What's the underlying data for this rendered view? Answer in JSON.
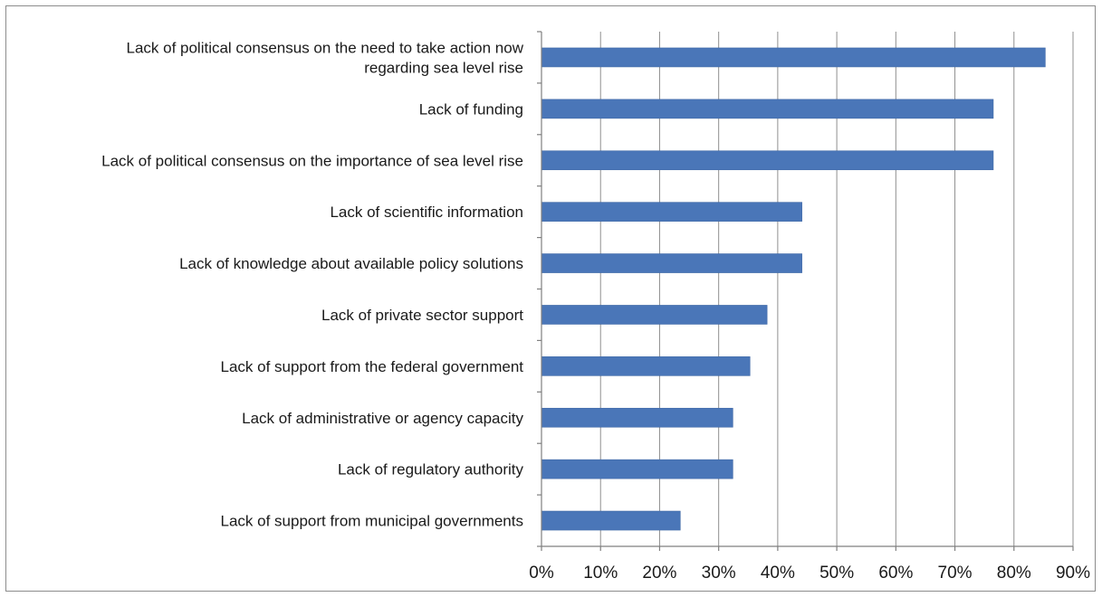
{
  "chart_data": {
    "type": "bar",
    "orientation": "horizontal",
    "title": "",
    "xlabel": "",
    "ylabel": "",
    "xlim": [
      0,
      90
    ],
    "x_ticks": [
      "0%",
      "10%",
      "20%",
      "30%",
      "40%",
      "50%",
      "60%",
      "70%",
      "80%",
      "90%"
    ],
    "grid": true,
    "legend": "none",
    "bar_color": "#4a76b8",
    "categories": [
      [
        "Lack of political consensus on the need to take action now",
        "regarding sea level rise"
      ],
      [
        "Lack of funding"
      ],
      [
        "Lack of political consensus on the importance of sea level rise"
      ],
      [
        "Lack of scientific information"
      ],
      [
        "Lack of knowledge about available policy solutions"
      ],
      [
        "Lack of private sector support"
      ],
      [
        "Lack of support from the federal government"
      ],
      [
        "Lack of administrative or agency capacity"
      ],
      [
        "Lack of regulatory authority"
      ],
      [
        "Lack of support from municipal governments"
      ]
    ],
    "values": [
      85.3,
      76.5,
      76.5,
      44.1,
      44.1,
      38.2,
      35.3,
      32.4,
      32.4,
      23.5
    ]
  }
}
